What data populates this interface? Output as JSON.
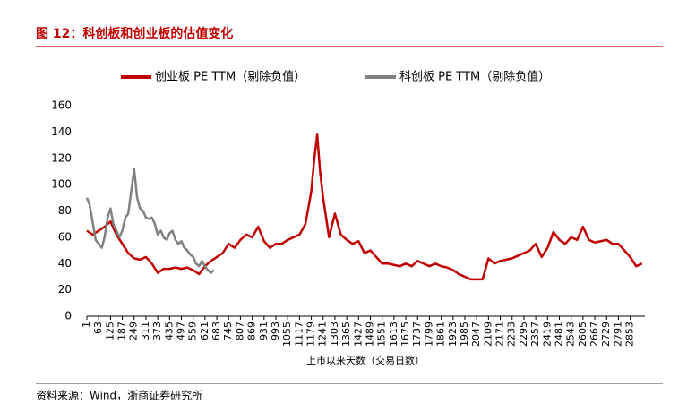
{
  "chart_data": {
    "type": "line",
    "title": "图 12：科创板和创业板的估值变化",
    "xlabel": "上市以来天数（交易日数）",
    "source": "资料来源：Wind，浙商证券研究所",
    "xlim": [
      1,
      2930
    ],
    "ylim": [
      0,
      160
    ],
    "yticks": [
      0,
      20,
      40,
      60,
      80,
      100,
      120,
      140,
      160
    ],
    "xticks": [
      1,
      63,
      125,
      187,
      249,
      311,
      373,
      435,
      497,
      559,
      621,
      683,
      745,
      807,
      869,
      931,
      993,
      1055,
      1117,
      1179,
      1241,
      1303,
      1365,
      1427,
      1489,
      1551,
      1613,
      1675,
      1737,
      1799,
      1861,
      1923,
      1985,
      2047,
      2109,
      2171,
      2233,
      2295,
      2357,
      2419,
      2481,
      2543,
      2605,
      2667,
      2729,
      2791,
      2853
    ],
    "series": [
      {
        "name": "创业板 PE TTM（剔除负值）",
        "color": "#c00000",
        "x": [
          1,
          31,
          63,
          94,
          125,
          156,
          187,
          218,
          249,
          280,
          311,
          342,
          373,
          404,
          435,
          466,
          497,
          528,
          559,
          590,
          621,
          652,
          683,
          714,
          745,
          776,
          807,
          838,
          869,
          900,
          931,
          962,
          993,
          1024,
          1055,
          1086,
          1117,
          1148,
          1179,
          1195,
          1210,
          1225,
          1241,
          1272,
          1303,
          1334,
          1365,
          1396,
          1427,
          1458,
          1489,
          1520,
          1551,
          1582,
          1613,
          1644,
          1675,
          1706,
          1737,
          1768,
          1799,
          1830,
          1861,
          1892,
          1923,
          1954,
          1985,
          2016,
          2047,
          2078,
          2109,
          2140,
          2171,
          2202,
          2233,
          2264,
          2295,
          2326,
          2357,
          2388,
          2419,
          2450,
          2481,
          2512,
          2543,
          2574,
          2605,
          2636,
          2667,
          2698,
          2729,
          2760,
          2791,
          2822,
          2853,
          2884,
          2915
        ],
        "values": [
          65,
          62,
          65,
          68,
          72,
          62,
          55,
          48,
          44,
          43,
          45,
          40,
          33,
          36,
          36,
          37,
          36,
          37,
          35,
          32,
          38,
          42,
          45,
          48,
          55,
          52,
          58,
          62,
          60,
          68,
          57,
          52,
          55,
          55,
          58,
          60,
          62,
          70,
          95,
          120,
          138,
          110,
          90,
          60,
          78,
          62,
          58,
          55,
          57,
          48,
          50,
          45,
          40,
          40,
          39,
          38,
          40,
          38,
          42,
          40,
          38,
          40,
          38,
          37,
          35,
          32,
          30,
          28,
          28,
          28,
          44,
          40,
          42,
          43,
          44,
          46,
          48,
          50,
          55,
          45,
          52,
          64,
          58,
          55,
          60,
          58,
          68,
          58,
          56,
          57,
          58,
          55,
          55,
          50,
          45,
          38,
          40
        ]
      },
      {
        "name": "科创板 PE TTM（剔除负值）",
        "color": "#808080",
        "x": [
          1,
          15,
          31,
          47,
          63,
          79,
          94,
          110,
          125,
          140,
          156,
          172,
          187,
          203,
          218,
          234,
          249,
          265,
          280,
          296,
          311,
          327,
          342,
          358,
          373,
          389,
          404,
          420,
          435,
          450,
          466,
          481,
          497,
          512,
          528,
          543,
          559,
          574,
          590,
          605,
          621,
          636,
          652,
          667
        ],
        "values": [
          90,
          85,
          72,
          58,
          55,
          52,
          60,
          75,
          82,
          70,
          65,
          60,
          65,
          75,
          78,
          95,
          112,
          90,
          82,
          80,
          75,
          74,
          75,
          70,
          62,
          65,
          60,
          58,
          63,
          65,
          58,
          55,
          57,
          52,
          50,
          47,
          45,
          40,
          38,
          42,
          38,
          35,
          33,
          35
        ]
      }
    ]
  }
}
